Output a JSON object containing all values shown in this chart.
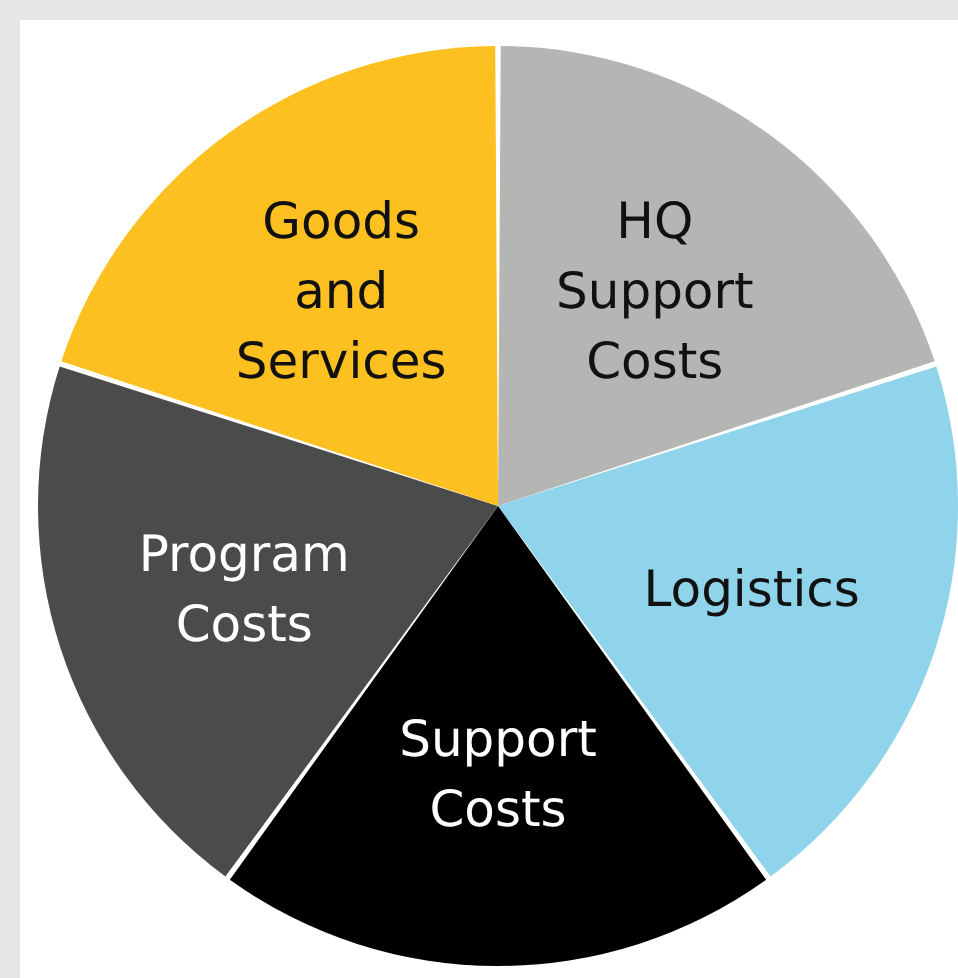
{
  "chart_data": {
    "type": "pie",
    "categories": [
      "HQ Support Costs",
      "Logistics",
      "Support Costs",
      "Program Costs",
      "Goods and Services"
    ],
    "values": [
      20,
      20,
      20,
      20,
      20
    ],
    "colors": [
      "#b5b5b4",
      "#8fd4ea",
      "#000000",
      "#4b4b4b",
      "#fcc020"
    ]
  }
}
